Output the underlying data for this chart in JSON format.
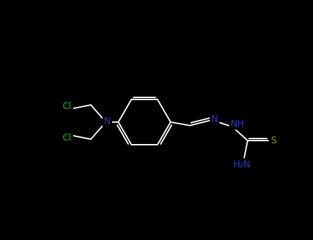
{
  "background_color": "#000000",
  "bond_color": "#ffffff",
  "atom_colors": {
    "Cl": "#00bb00",
    "N": "#3333bb",
    "S": "#999900",
    "C": "#ffffff"
  },
  "figsize": [
    4.55,
    3.5
  ],
  "dpi": 100,
  "lw": 1.4
}
